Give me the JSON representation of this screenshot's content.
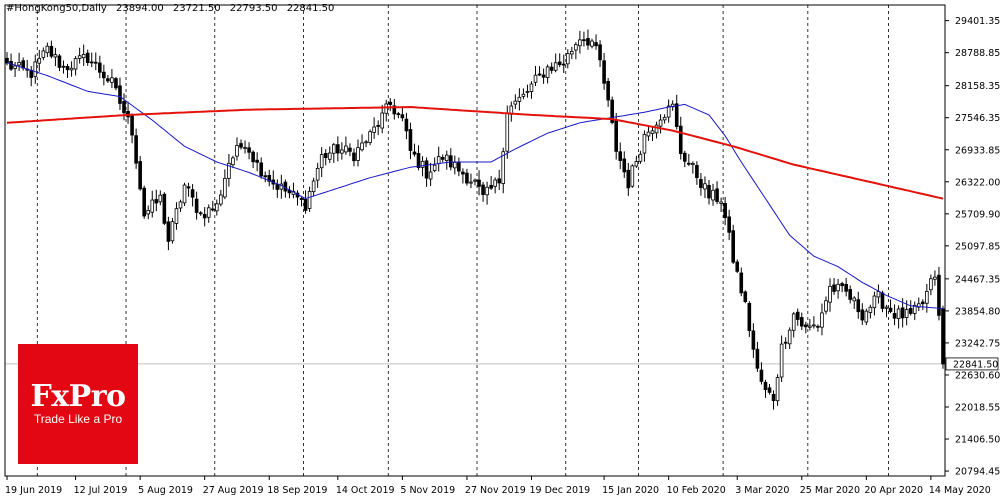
{
  "header": {
    "symbol": "#HongKong50,Daily",
    "ohlc": [
      "23894.00",
      "23721.50",
      "22793.50",
      "22841.50"
    ]
  },
  "logo": {
    "brand": "FxPro",
    "tagline": "Trade Like a Pro"
  },
  "chart_data": {
    "type": "candlestick",
    "title": "#HongKong50,Daily",
    "timeframe": "Daily",
    "last_price": 22841.5,
    "last_price_label": "22841.50",
    "y_ticks": [
      29401.35,
      28788.85,
      28158.35,
      27546.35,
      26933.85,
      26322.0,
      25709.9,
      25097.85,
      24467.35,
      23854.8,
      23242.75,
      22630.6,
      22018.55,
      21406.5,
      20794.45
    ],
    "y_tick_labels": [
      "29401.35",
      "28788.85",
      "28158.35",
      "27546.35",
      "26933.85",
      "26322.00",
      "25709.90",
      "25097.85",
      "24467.35",
      "23854.80",
      "23242.75",
      "22630.60",
      "22018.55",
      "21406.50",
      "20794.45"
    ],
    "ylim": [
      20700,
      29700
    ],
    "x_ticks": [
      "19 Jun 2019",
      "12 Jul 2019",
      "5 Aug 2019",
      "27 Aug 2019",
      "18 Sep 2019",
      "14 Oct 2019",
      "5 Nov 2019",
      "27 Nov 2019",
      "19 Dec 2019",
      "15 Jan 2020",
      "10 Feb 2020",
      "3 Mar 2020",
      "25 Mar 2020",
      "20 Apr 2020",
      "14 May 2020"
    ],
    "x_tick_index": [
      0,
      17,
      33,
      49,
      65,
      82,
      98,
      114,
      130,
      148,
      164,
      181,
      197,
      213,
      229
    ],
    "period_separators": [
      8,
      30,
      52,
      74,
      95,
      117,
      139,
      157,
      178,
      199,
      219
    ],
    "candle_count": 233,
    "colors": {
      "candle": "#000000",
      "ma_slow": "#e3120b",
      "ma_fast": "#1818c8",
      "last_price_line": "#c0c0c0",
      "grid": "#000000"
    },
    "series": [
      {
        "type": "close",
        "interpolated_from": "visible chart",
        "keyframes": [
          [
            0,
            28550
          ],
          [
            6,
            28400
          ],
          [
            10,
            28850
          ],
          [
            14,
            28500
          ],
          [
            20,
            28700
          ],
          [
            26,
            28200
          ],
          [
            31,
            27300
          ],
          [
            34,
            25700
          ],
          [
            38,
            26000
          ],
          [
            40,
            25200
          ],
          [
            44,
            26250
          ],
          [
            48,
            25700
          ],
          [
            52,
            25850
          ],
          [
            55,
            26700
          ],
          [
            59,
            27100
          ],
          [
            62,
            26650
          ],
          [
            66,
            26300
          ],
          [
            70,
            26100
          ],
          [
            74,
            25900
          ],
          [
            78,
            26800
          ],
          [
            82,
            26950
          ],
          [
            86,
            26850
          ],
          [
            90,
            27200
          ],
          [
            95,
            27800
          ],
          [
            98,
            27500
          ],
          [
            100,
            26900
          ],
          [
            104,
            26500
          ],
          [
            108,
            26800
          ],
          [
            112,
            26550
          ],
          [
            116,
            26300
          ],
          [
            118,
            26000
          ],
          [
            122,
            26350
          ],
          [
            124,
            27700
          ],
          [
            128,
            27950
          ],
          [
            131,
            28250
          ],
          [
            134,
            28500
          ],
          [
            138,
            28600
          ],
          [
            142,
            29100
          ],
          [
            145,
            29000
          ],
          [
            147,
            28600
          ],
          [
            149,
            27800
          ],
          [
            151,
            26950
          ],
          [
            154,
            26300
          ],
          [
            158,
            27200
          ],
          [
            162,
            27600
          ],
          [
            165,
            27750
          ],
          [
            167,
            26900
          ],
          [
            171,
            26450
          ],
          [
            174,
            26050
          ],
          [
            177,
            26000
          ],
          [
            180,
            24850
          ],
          [
            183,
            23950
          ],
          [
            186,
            22700
          ],
          [
            188,
            22300
          ],
          [
            190,
            22200
          ],
          [
            192,
            23150
          ],
          [
            195,
            23800
          ],
          [
            198,
            23500
          ],
          [
            201,
            23600
          ],
          [
            204,
            24300
          ],
          [
            208,
            24200
          ],
          [
            212,
            23800
          ],
          [
            216,
            24100
          ],
          [
            220,
            23800
          ],
          [
            224,
            23750
          ],
          [
            227,
            24000
          ],
          [
            230,
            24550
          ],
          [
            232,
            22841.5
          ]
        ]
      },
      {
        "name": "",
        "type": "ma_fast",
        "color": "#1818c8",
        "keyframes": [
          [
            0,
            28600
          ],
          [
            10,
            28350
          ],
          [
            20,
            28050
          ],
          [
            28,
            27950
          ],
          [
            36,
            27500
          ],
          [
            44,
            27000
          ],
          [
            52,
            26700
          ],
          [
            60,
            26500
          ],
          [
            68,
            26250
          ],
          [
            74,
            26000
          ],
          [
            80,
            26150
          ],
          [
            90,
            26400
          ],
          [
            100,
            26600
          ],
          [
            110,
            26700
          ],
          [
            120,
            26700
          ],
          [
            126,
            26950
          ],
          [
            134,
            27250
          ],
          [
            142,
            27450
          ],
          [
            150,
            27550
          ],
          [
            158,
            27650
          ],
          [
            164,
            27750
          ],
          [
            168,
            27800
          ],
          [
            174,
            27600
          ],
          [
            178,
            27200
          ],
          [
            182,
            26700
          ],
          [
            188,
            26000
          ],
          [
            194,
            25300
          ],
          [
            200,
            24900
          ],
          [
            206,
            24700
          ],
          [
            212,
            24400
          ],
          [
            218,
            24150
          ],
          [
            224,
            23950
          ],
          [
            232,
            23900
          ]
        ]
      },
      {
        "name": "",
        "type": "ma_slow",
        "color": "#e3120b",
        "keyframes": [
          [
            0,
            27450
          ],
          [
            30,
            27600
          ],
          [
            60,
            27700
          ],
          [
            100,
            27750
          ],
          [
            110,
            27700
          ],
          [
            130,
            27600
          ],
          [
            150,
            27520
          ],
          [
            165,
            27300
          ],
          [
            180,
            27000
          ],
          [
            195,
            26650
          ],
          [
            215,
            26300
          ],
          [
            232,
            26000
          ]
        ]
      }
    ]
  }
}
